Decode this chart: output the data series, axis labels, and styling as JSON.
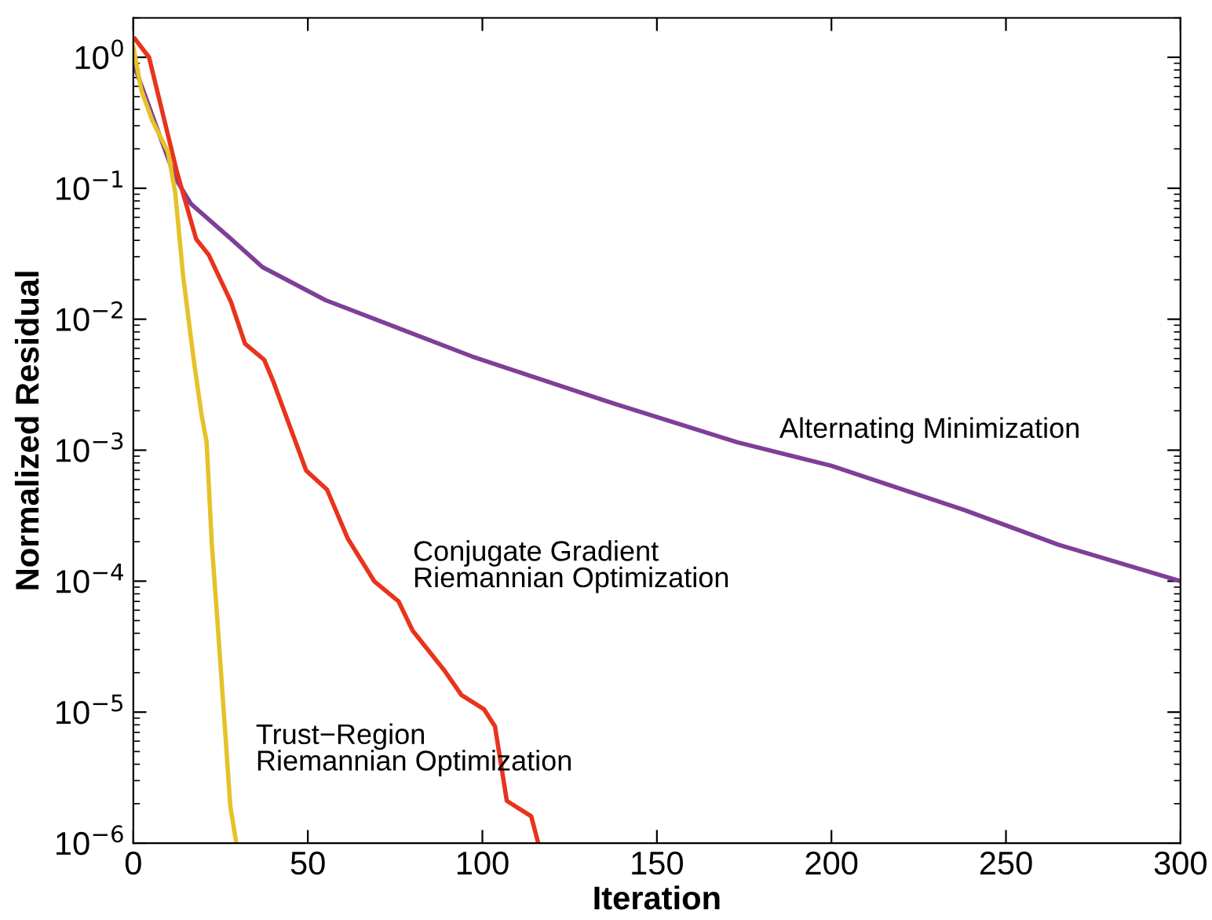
{
  "chart_data": {
    "type": "line",
    "xlabel": "Iteration",
    "ylabel": "Normalized Residual",
    "log": "y",
    "grid": false,
    "legend": false,
    "marker": "none",
    "line_style": "solid",
    "xlim": [
      0,
      300
    ],
    "xticks": [
      0,
      50,
      100,
      150,
      200,
      250,
      300
    ],
    "ylim": [
      1e-06,
      2
    ],
    "yticks": [
      {
        "value": 1e-06,
        "label": "10$^{−6}$"
      },
      {
        "value": 1e-05,
        "label": "10$^{−5}$"
      },
      {
        "value": 0.0001,
        "label": "10$^{−4}$"
      },
      {
        "value": 0.001,
        "label": "10$^{−3}$"
      },
      {
        "value": 0.01,
        "label": "10$^{−2}$"
      },
      {
        "value": 0.1,
        "label": "10$^{−1}$"
      },
      {
        "value": 1,
        "label": "10$^{0}$"
      }
    ],
    "series": [
      {
        "name": "Alternating Minimization",
        "color": "#7f3f98",
        "x": [
          0,
          12,
          16.5,
          28,
          37,
          55,
          97,
          137,
          173,
          200,
          238,
          265,
          300
        ],
        "values": [
          0.9,
          0.12,
          0.076,
          0.041,
          0.025,
          0.014,
          0.0052,
          0.0023,
          0.00115,
          0.00076,
          0.00035,
          0.00019,
          0.0001
        ]
      },
      {
        "name": "Conjugate Gradient\nRiemannian Optimization",
        "color": "#e8341c",
        "x": [
          0.5,
          4.5,
          12.6,
          18,
          21.6,
          28,
          32,
          37.5,
          40,
          49.5,
          55.5,
          61.5,
          69,
          76,
          80,
          89,
          94,
          100.5,
          103.6,
          107,
          114,
          116
        ],
        "values": [
          1.38,
          1.0,
          0.13,
          0.041,
          0.031,
          0.0135,
          0.0065,
          0.0049,
          0.0034,
          0.0007,
          0.0005,
          0.00021,
          0.0001,
          7e-05,
          4.2e-05,
          2.1e-05,
          1.35e-05,
          1.05e-05,
          7.8e-06,
          2.1e-06,
          1.6e-06,
          1e-06
        ]
      },
      {
        "name": "Trust−Region\nRiemannian Optimization",
        "color": "#e6c229",
        "x": [
          0,
          2.3,
          5.4,
          9.9,
          12,
          14.3,
          17.3,
          19.5,
          21,
          22.5,
          24,
          26.2,
          27.8,
          29.5
        ],
        "values": [
          1.2,
          0.56,
          0.33,
          0.19,
          0.093,
          0.021,
          0.0049,
          0.0019,
          0.00115,
          0.00019,
          5.4e-05,
          7.8e-06,
          1.9e-06,
          1e-06
        ]
      }
    ]
  }
}
